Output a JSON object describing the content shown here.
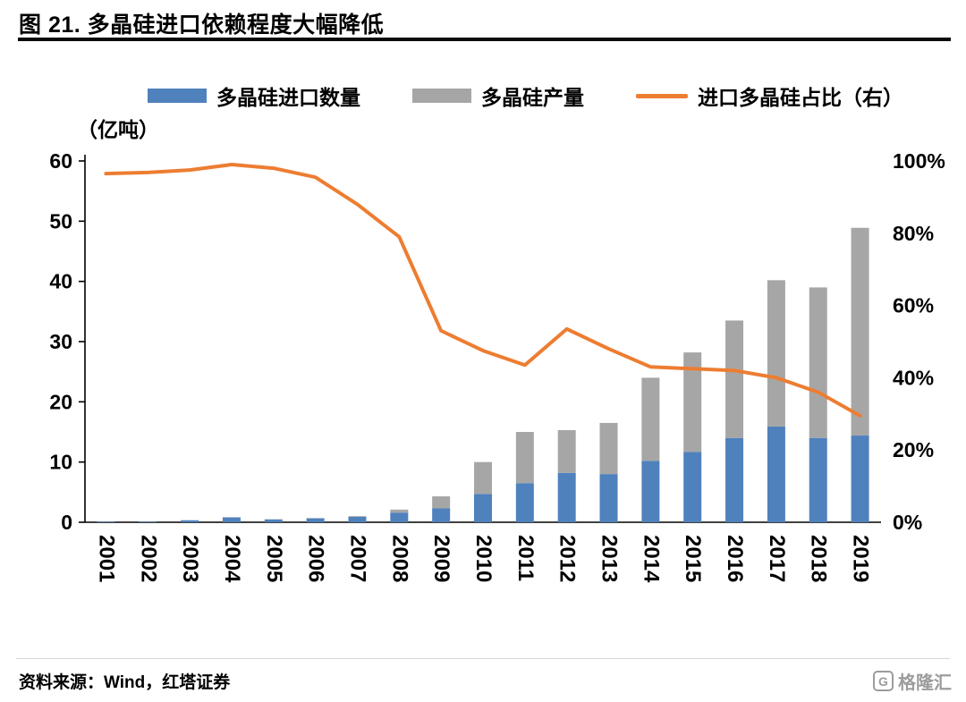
{
  "page": {
    "title": "图 21. 多晶硅进口依赖程度大幅降低",
    "source": "资料来源：Wind，红塔证券",
    "watermark": {
      "icon": "G",
      "text": "格隆汇"
    }
  },
  "chart_data": {
    "type": "bar",
    "subtype": "stacked-bar-with-line",
    "title": "图 21. 多晶硅进口依赖程度大幅降低",
    "unit_label": "（亿吨）",
    "legend_position": "top",
    "grid": false,
    "categories": [
      "2001",
      "2002",
      "2003",
      "2004",
      "2005",
      "2006",
      "2007",
      "2008",
      "2009",
      "2010",
      "2011",
      "2012",
      "2013",
      "2014",
      "2015",
      "2016",
      "2017",
      "2018",
      "2019"
    ],
    "series": [
      {
        "name": "多晶硅进口数量",
        "type": "bar",
        "stack": true,
        "axis": "left",
        "color": "#4F81BD",
        "values": [
          0.1,
          0.1,
          0.33,
          0.8,
          0.47,
          0.65,
          0.9,
          1.6,
          2.3,
          4.7,
          6.5,
          8.2,
          8.0,
          10.2,
          11.7,
          14.0,
          15.9,
          14.0,
          14.4
        ]
      },
      {
        "name": "多晶硅产量",
        "type": "bar",
        "stack": true,
        "axis": "left",
        "color": "#A6A6A6",
        "values": [
          0.0,
          0.0,
          0.02,
          0.05,
          0.03,
          0.05,
          0.12,
          0.5,
          2.0,
          5.3,
          8.5,
          7.1,
          8.5,
          13.8,
          16.5,
          19.5,
          24.3,
          25.0,
          34.5
        ]
      },
      {
        "name": "进口多晶硅占比（右）",
        "type": "line",
        "axis": "right",
        "color": "#ED7D31",
        "values": [
          96.5,
          96.8,
          97.5,
          99.0,
          98.0,
          95.5,
          88.0,
          79.0,
          53.0,
          47.5,
          43.5,
          53.5,
          48.0,
          43.0,
          42.5,
          42.0,
          40.0,
          36.0,
          29.5
        ]
      }
    ],
    "left_axis": {
      "min": 0,
      "max": 60,
      "ticks": [
        0,
        10,
        20,
        30,
        40,
        50,
        60
      ]
    },
    "right_axis": {
      "min": 0,
      "max": 100,
      "tick_labels": [
        "0%",
        "20%",
        "40%",
        "60%",
        "80%",
        "100%"
      ]
    }
  }
}
